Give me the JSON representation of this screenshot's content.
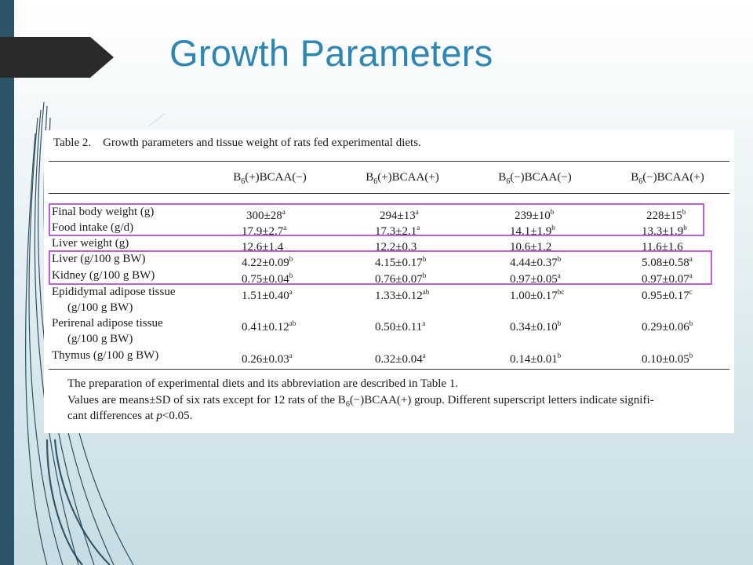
{
  "slide": {
    "title": "Growth Parameters"
  },
  "table": {
    "caption": "Table 2. Growth parameters and tissue weight of rats fed experimental diets.",
    "columns": [
      {
        "prefix": "B",
        "sub": "6",
        "suffix": "(+)BCAA(−)"
      },
      {
        "prefix": "B",
        "sub": "6",
        "suffix": "(+)BCAA(+)"
      },
      {
        "prefix": "B",
        "sub": "6",
        "suffix": "(−)BCAA(−)"
      },
      {
        "prefix": "B",
        "sub": "6",
        "suffix": "(−)BCAA(+)"
      }
    ],
    "rows": [
      {
        "label": "Final body weight (g)",
        "cells": [
          {
            "v": "300±28",
            "s": "a"
          },
          {
            "v": "294±13",
            "s": "a"
          },
          {
            "v": "239±10",
            "s": "b"
          },
          {
            "v": "228±15",
            "s": "b"
          }
        ]
      },
      {
        "label": "Food intake (g/d)",
        "cells": [
          {
            "v": "17.9±2.7",
            "s": "a"
          },
          {
            "v": "17.3±2.1",
            "s": "a"
          },
          {
            "v": "14.1±1.9",
            "s": "b"
          },
          {
            "v": "13.3±1.9",
            "s": "b"
          }
        ]
      },
      {
        "label": "Liver weight (g)",
        "cells": [
          {
            "v": "12.6±1.4",
            "s": ""
          },
          {
            "v": "12.2±0.3",
            "s": ""
          },
          {
            "v": "10.6±1.2",
            "s": ""
          },
          {
            "v": "11.6±1.6",
            "s": ""
          }
        ]
      },
      {
        "label": "Liver (g/100 g BW)",
        "cells": [
          {
            "v": "4.22±0.09",
            "s": "b"
          },
          {
            "v": "4.15±0.17",
            "s": "b"
          },
          {
            "v": "4.44±0.37",
            "s": "b"
          },
          {
            "v": "5.08±0.58",
            "s": "a"
          }
        ]
      },
      {
        "label": "Kidney (g/100 g BW)",
        "cells": [
          {
            "v": "0.75±0.04",
            "s": "b"
          },
          {
            "v": "0.76±0.07",
            "s": "b"
          },
          {
            "v": "0.97±0.05",
            "s": "a"
          },
          {
            "v": "0.97±0.07",
            "s": "a"
          }
        ]
      },
      {
        "label": "Epididymal adipose tissue",
        "label2": "(g/100 g BW)",
        "cells": [
          {
            "v": "1.51±0.40",
            "s": "a"
          },
          {
            "v": "1.33±0.12",
            "s": "ab"
          },
          {
            "v": "1.00±0.17",
            "s": "bc"
          },
          {
            "v": "0.95±0.17",
            "s": "c"
          }
        ]
      },
      {
        "label": "Perirenal adipose tissue",
        "label2": "(g/100 g BW)",
        "cells": [
          {
            "v": "0.41±0.12",
            "s": "ab"
          },
          {
            "v": "0.50±0.11",
            "s": "a"
          },
          {
            "v": "0.34±0.10",
            "s": "b"
          },
          {
            "v": "0.29±0.06",
            "s": "b"
          }
        ]
      },
      {
        "label": "Thymus (g/100 g BW)",
        "cells": [
          {
            "v": "0.26±0.03",
            "s": "a"
          },
          {
            "v": "0.32±0.04",
            "s": "a"
          },
          {
            "v": "0.14±0.01",
            "s": "b"
          },
          {
            "v": "0.10±0.05",
            "s": "b"
          }
        ]
      }
    ],
    "footnotes": {
      "line1": "The preparation of experimental diets and its abbreviation are described in Table 1.",
      "line2_a": "Values are means±SD of six rats except for 12 rats of the B",
      "line2_sub": "6",
      "line2_b": "(−)BCAA(+) group. Different superscript letters indicate signifi-",
      "line3_a": "cant differences at ",
      "line3_p": "p",
      "line3_b": "<0.05."
    }
  },
  "colors": {
    "title": "#2e86b3",
    "sidebar": "#2b5468",
    "highlight_box": "#c060d8"
  }
}
